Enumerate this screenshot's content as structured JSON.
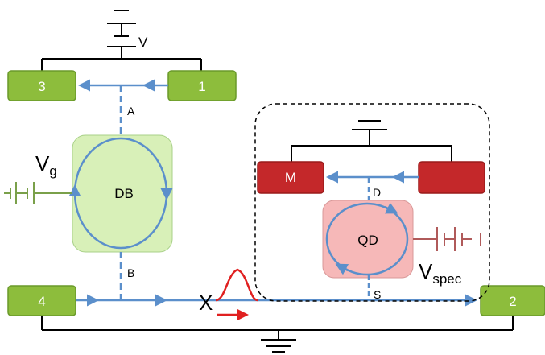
{
  "colors": {
    "edge_channel": "#5b8fcb",
    "contact_green": "#8dbd3c",
    "contact_red": "#c4282a",
    "db_box": "#d8f0b8",
    "qd_box": "#f6b8b8",
    "gate_battery_green": "#7aa04a",
    "spec_battery_red": "#b05a5a",
    "wavepacket_red": "#e02020",
    "wire_black": "#000000"
  },
  "contacts": {
    "c3": "3",
    "c1": "1",
    "c4": "4",
    "c2": "2",
    "m": "M",
    "unlabeled_red": ""
  },
  "labels": {
    "voltage_source": "V",
    "gate_voltage_main": "V",
    "gate_voltage_sub": "g",
    "db": "DB",
    "qd": "QD",
    "spec_voltage_main": "V",
    "spec_voltage_sub": "spec",
    "point_a": "A",
    "point_b": "B",
    "point_d": "D",
    "point_s": "S",
    "cross_marker": "X"
  },
  "icons": {
    "battery": "battery-icon",
    "ground": "ground-icon",
    "wavepacket": "wavepacket-icon"
  }
}
